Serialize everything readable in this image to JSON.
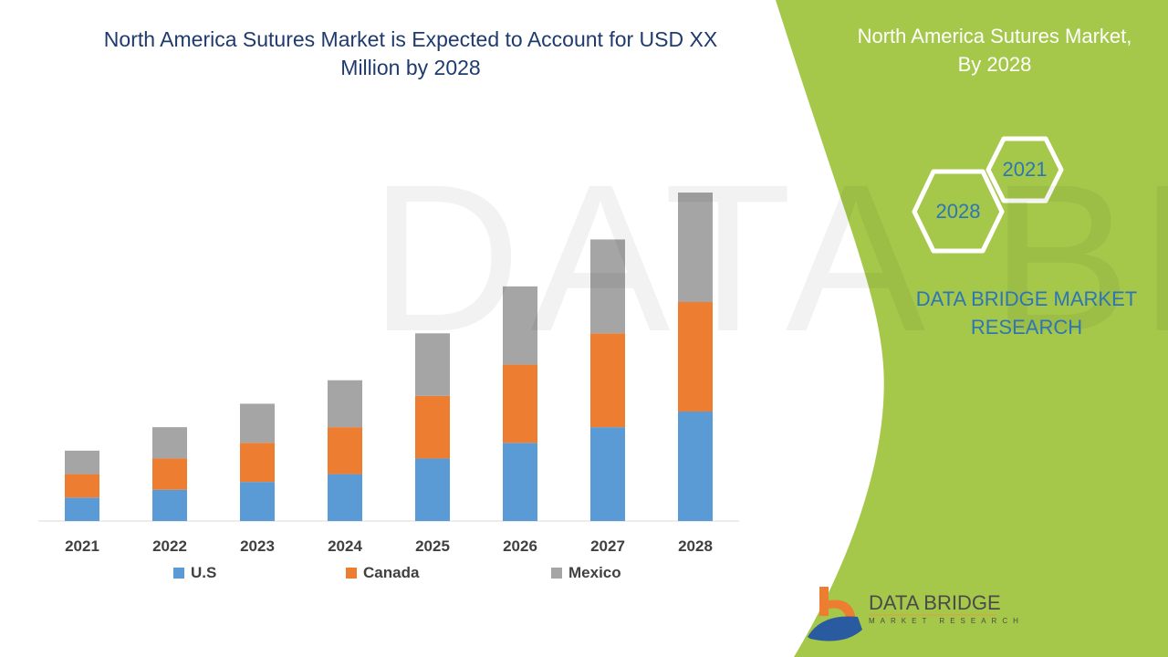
{
  "title": "North America Sutures Market is Expected to Account for USD XX Million by 2028",
  "side_panel": {
    "title_line1": "North America Sutures Market,",
    "title_line2": "By 2028",
    "hex_start": "2021",
    "hex_end": "2028",
    "brand_line1": "DATA BRIDGE MARKET",
    "brand_line2": "RESEARCH"
  },
  "logo": {
    "name": "DATA BRIDGE",
    "tagline": "MARKET RESEARCH"
  },
  "watermark": "DATA BRIDGE",
  "colors": {
    "us": "#5b9bd5",
    "canada": "#ed7d31",
    "mexico": "#a5a5a5",
    "panel": "#a5c84a",
    "title": "#1f3b6e"
  },
  "chart_data": {
    "type": "bar",
    "stacked": true,
    "title": "North America Sutures Market is Expected to Account for USD XX Million by 2028",
    "categories": [
      "2021",
      "2022",
      "2023",
      "2024",
      "2025",
      "2026",
      "2027",
      "2028"
    ],
    "series": [
      {
        "name": "U.S",
        "values": [
          15,
          20,
          25,
          30,
          40,
          50,
          60,
          70
        ]
      },
      {
        "name": "Canada",
        "values": [
          15,
          20,
          25,
          30,
          40,
          50,
          60,
          70
        ]
      },
      {
        "name": "Mexico",
        "values": [
          15,
          20,
          25,
          30,
          40,
          50,
          60,
          70
        ]
      }
    ],
    "ylim": [
      0,
      210
    ],
    "y_axis_visible": false,
    "grid": false,
    "legend_position": "bottom"
  }
}
